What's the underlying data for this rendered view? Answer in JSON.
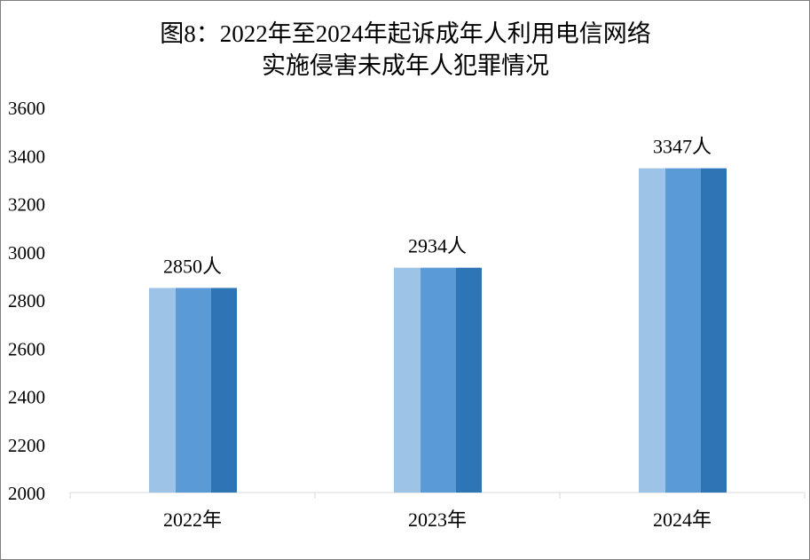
{
  "chart_data": {
    "type": "bar",
    "title_lines": [
      "图8：2022年至2024年起诉成年人利用电信网络",
      "实施侵害未成年人犯罪情况"
    ],
    "categories": [
      "2022年",
      "2023年",
      "2024年"
    ],
    "values": [
      2850,
      2934,
      3347
    ],
    "data_labels": [
      "2850人",
      "2934人",
      "3347人"
    ],
    "ylim": [
      2000,
      3600
    ],
    "yticks": [
      "2000",
      "2200",
      "2400",
      "2600",
      "2800",
      "3000",
      "3200",
      "3400",
      "3600"
    ],
    "grid": false,
    "legend": "none",
    "colors": [
      "#9DC3E6",
      "#5B9BD5",
      "#2E75B6"
    ]
  }
}
